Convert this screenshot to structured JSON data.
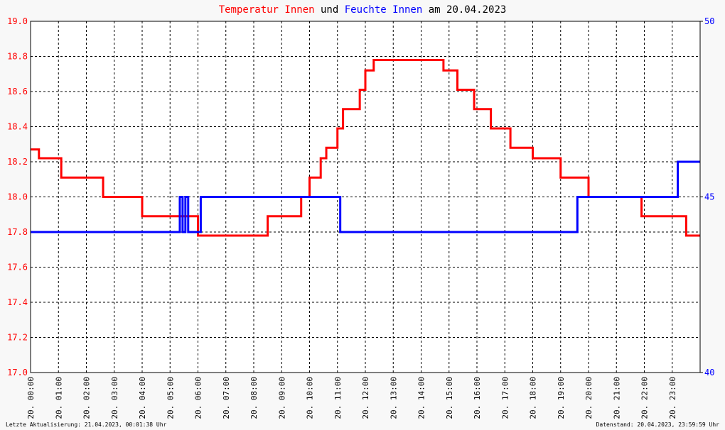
{
  "chart_data": {
    "type": "line",
    "title_joiner": "und",
    "title_suffix": "am 20.04.2023",
    "footer_left": "Letzte Aktualisierung: 21.04.2023, 00:01:38 Uhr",
    "footer_right": "Datenstand: 20.04.2023, 23:59:59 Uhr",
    "xlim": [
      0,
      24
    ],
    "xticks": [
      {
        "value": 0,
        "label": "20. 00:00"
      },
      {
        "value": 1,
        "label": "20. 01:00"
      },
      {
        "value": 2,
        "label": "20. 02:00"
      },
      {
        "value": 3,
        "label": "20. 03:00"
      },
      {
        "value": 4,
        "label": "20. 04:00"
      },
      {
        "value": 5,
        "label": "20. 05:00"
      },
      {
        "value": 6,
        "label": "20. 06:00"
      },
      {
        "value": 7,
        "label": "20. 07:00"
      },
      {
        "value": 8,
        "label": "20. 08:00"
      },
      {
        "value": 9,
        "label": "20. 09:00"
      },
      {
        "value": 10,
        "label": "20. 10:00"
      },
      {
        "value": 11,
        "label": "20. 11:00"
      },
      {
        "value": 12,
        "label": "20. 12:00"
      },
      {
        "value": 13,
        "label": "20. 13:00"
      },
      {
        "value": 14,
        "label": "20. 14:00"
      },
      {
        "value": 15,
        "label": "20. 15:00"
      },
      {
        "value": 16,
        "label": "20. 16:00"
      },
      {
        "value": 17,
        "label": "20. 17:00"
      },
      {
        "value": 18,
        "label": "20. 18:00"
      },
      {
        "value": 19,
        "label": "20. 19:00"
      },
      {
        "value": 20,
        "label": "20. 20:00"
      },
      {
        "value": 21,
        "label": "20. 21:00"
      },
      {
        "value": 22,
        "label": "20. 22:00"
      },
      {
        "value": 23,
        "label": "20. 23:00"
      }
    ],
    "ylim": [
      17,
      19
    ],
    "yticks": [
      {
        "value": 17,
        "label": "17.0"
      },
      17.2,
      17.4,
      17.6,
      17.8,
      {
        "value": 18,
        "label": "18.0"
      },
      18.2,
      18.4,
      18.6,
      18.8,
      {
        "value": 19,
        "label": "19.0"
      }
    ],
    "y2lim": [
      40,
      50
    ],
    "y2ticks": [
      40,
      45,
      50
    ],
    "grid": true,
    "series": [
      {
        "name": "Temperatur Innen",
        "color": "#ff0000",
        "x": [
          0,
          0.3,
          0.3,
          1.1,
          1.1,
          2.6,
          2.6,
          4.0,
          4.0,
          6.0,
          6.0,
          8.5,
          8.5,
          9.7,
          9.7,
          10.0,
          10.0,
          10.4,
          10.4,
          10.6,
          10.6,
          11.0,
          11.0,
          11.2,
          11.2,
          11.8,
          11.8,
          12.0,
          12.0,
          12.3,
          12.3,
          14.8,
          14.8,
          15.3,
          15.3,
          15.9,
          15.9,
          16.5,
          16.5,
          17.2,
          17.2,
          18.0,
          18.0,
          19.0,
          19.0,
          20.0,
          20.0,
          21.9,
          21.9,
          23.5,
          23.5,
          24
        ],
        "values": [
          18.27,
          18.27,
          18.22,
          18.22,
          18.11,
          18.11,
          18.0,
          18.0,
          17.89,
          17.89,
          17.78,
          17.78,
          17.89,
          17.89,
          18.0,
          18.0,
          18.11,
          18.11,
          18.22,
          18.22,
          18.28,
          18.28,
          18.39,
          18.39,
          18.5,
          18.5,
          18.61,
          18.61,
          18.72,
          18.72,
          18.78,
          18.78,
          18.72,
          18.72,
          18.61,
          18.61,
          18.5,
          18.5,
          18.39,
          18.39,
          18.28,
          18.28,
          18.22,
          18.22,
          18.11,
          18.11,
          18.0,
          18.0,
          17.89,
          17.89,
          17.78,
          17.78
        ]
      },
      {
        "name": "Feuchte Innen",
        "color": "#0000ff",
        "axis": "y2",
        "x": [
          0,
          5.35,
          5.35,
          5.45,
          5.45,
          5.55,
          5.55,
          5.65,
          5.65,
          6.1,
          6.1,
          11.1,
          11.1,
          19.6,
          19.6,
          23.2,
          23.2,
          24
        ],
        "values": [
          44,
          44,
          45,
          45,
          44,
          44,
          45,
          45,
          44,
          44,
          45,
          45,
          44,
          44,
          45,
          45,
          46,
          46
        ]
      }
    ]
  }
}
